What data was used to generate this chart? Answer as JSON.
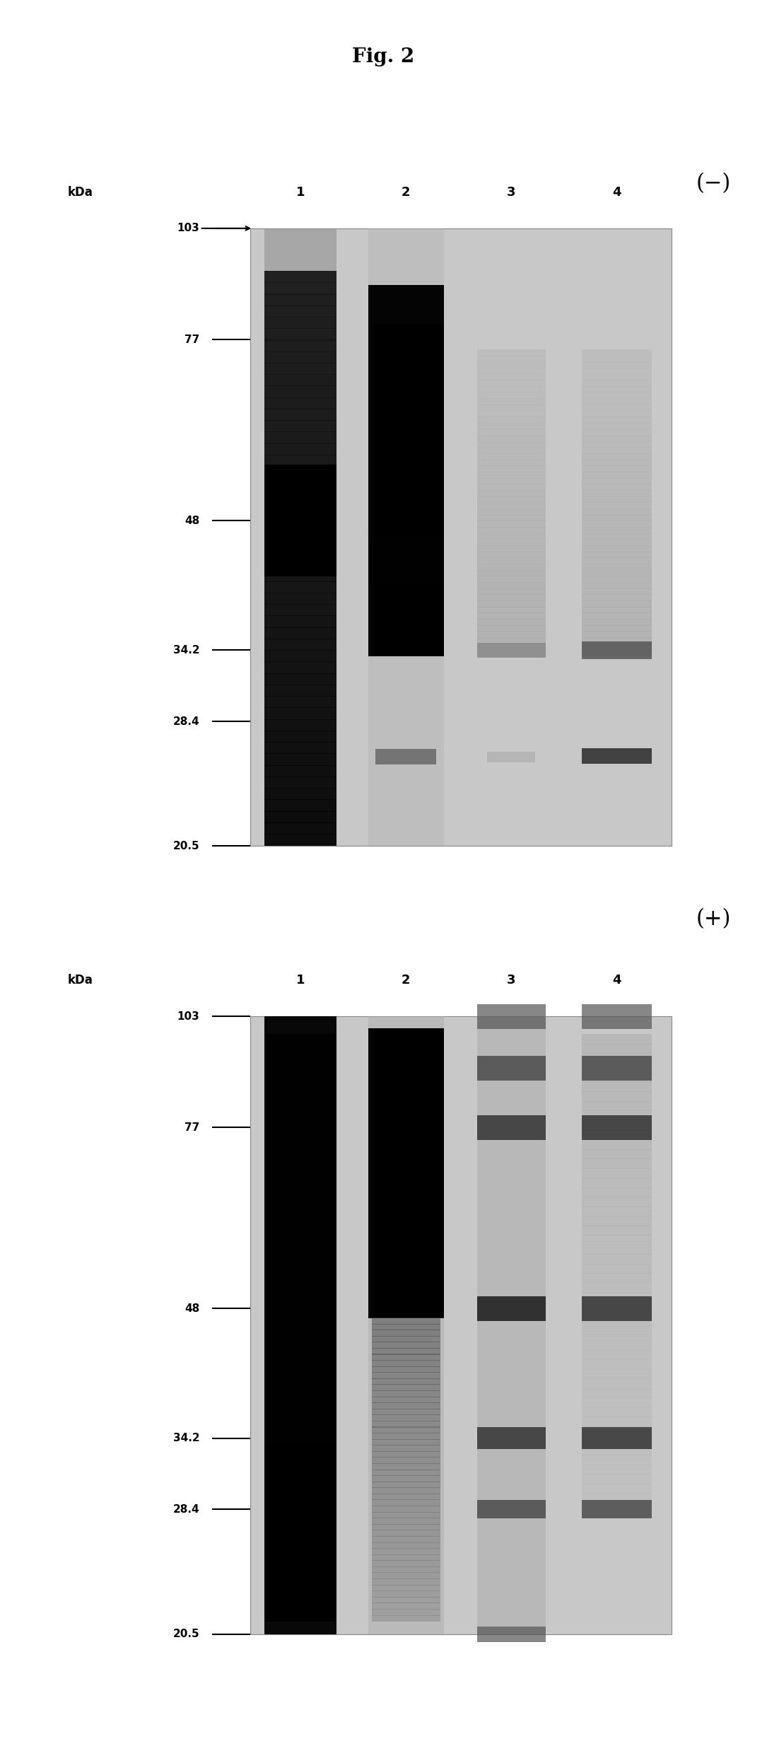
{
  "title": "Fig. 2",
  "title_fontsize": 20,
  "background_color": "#ffffff",
  "kda_markers": [
    103,
    77,
    48,
    34.2,
    28.4,
    20.5
  ],
  "kda_marker_labels": [
    "103",
    "77",
    "48",
    "34.2",
    "28.4",
    "20.5"
  ],
  "panel_top": {
    "polarity_label": "(−)",
    "lane_labels": [
      "1",
      "2",
      "3",
      "4"
    ]
  },
  "panel_bottom": {
    "polarity_label": "(+)",
    "lane_labels": [
      "1",
      "2",
      "3",
      "4"
    ]
  }
}
